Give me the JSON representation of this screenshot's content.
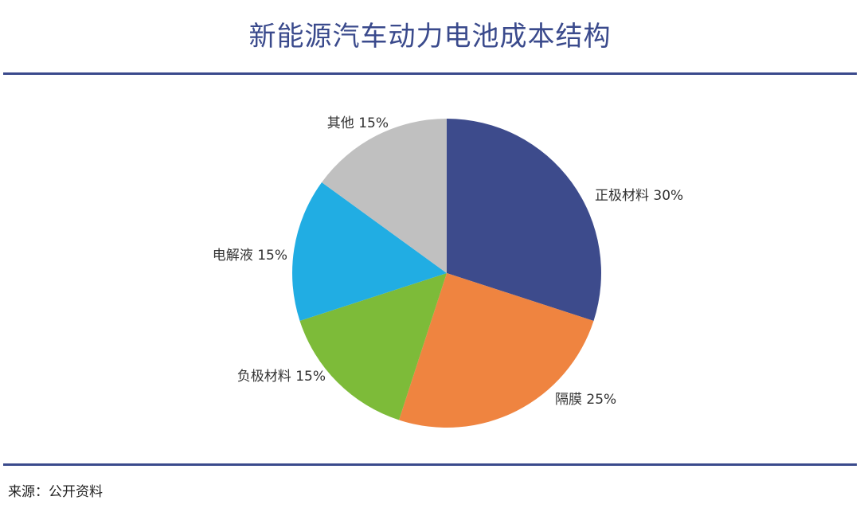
{
  "header": {
    "title": "新能源汽车动力电池成本结构"
  },
  "footer": {
    "source": "来源：公开资料"
  },
  "chart_data": {
    "type": "pie",
    "title": "新能源汽车动力电池成本结构",
    "slices": [
      {
        "label": "正极材料",
        "value": 30,
        "value_label": "30%",
        "color": "#3d4b8c"
      },
      {
        "label": "隔膜",
        "value": 25,
        "value_label": "25%",
        "color": "#ef8440"
      },
      {
        "label": "负极材料",
        "value": 15,
        "value_label": "15%",
        "color": "#7dbb39"
      },
      {
        "label": "电解液",
        "value": 15,
        "value_label": "15%",
        "color": "#21ade3"
      },
      {
        "label": "其他",
        "value": 15,
        "value_label": "15%",
        "color": "#c0c0c0"
      }
    ],
    "start": "12 o'clock",
    "direction": "clockwise",
    "legend": "none"
  }
}
